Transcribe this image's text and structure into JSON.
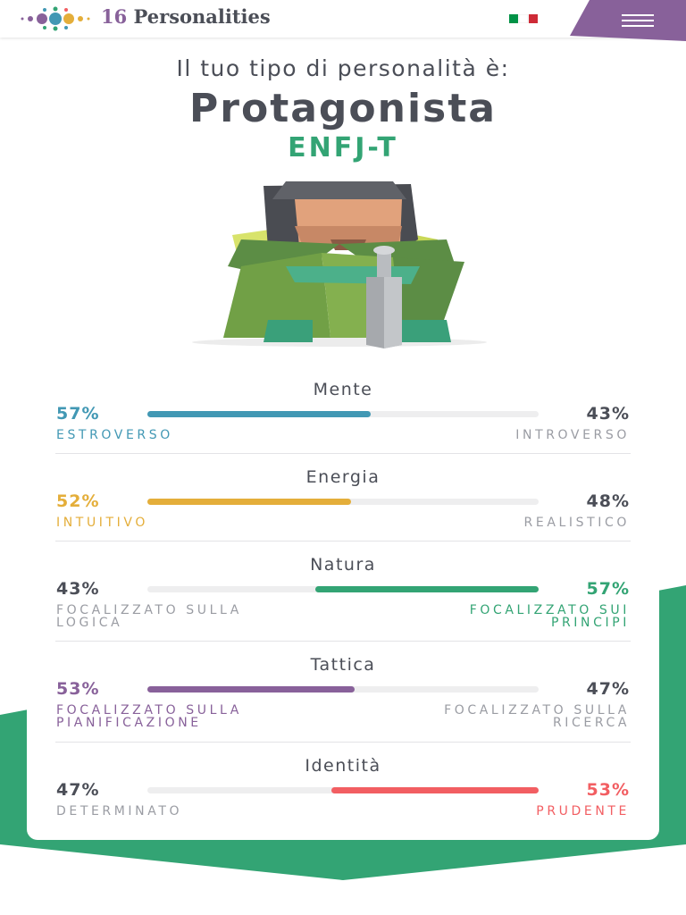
{
  "header": {
    "brand_number": "16",
    "brand_name": "Personalities"
  },
  "result": {
    "intro": "Il tuo tipo di personalità è:",
    "type_name": "Protagonista",
    "code": "ENFJ-T"
  },
  "traits": [
    {
      "title": "Mente",
      "values": [
        57,
        43
      ],
      "value_labels": [
        "57%",
        "43%"
      ],
      "labels": [
        "ESTROVERSO",
        "INTROVERSO"
      ],
      "dominant": "left",
      "color": "#4298b4"
    },
    {
      "title": "Energia",
      "values": [
        52,
        48
      ],
      "value_labels": [
        "52%",
        "48%"
      ],
      "labels": [
        "INTUITIVO",
        "REALISTICO"
      ],
      "dominant": "left",
      "color": "#e4ae3a"
    },
    {
      "title": "Natura",
      "values": [
        43,
        57
      ],
      "value_labels": [
        "43%",
        "57%"
      ],
      "labels": [
        "FOCALIZZATO SULLA LOGICA",
        "FOCALIZZATO SUI PRINCIPI"
      ],
      "dominant": "right",
      "color": "#33a474"
    },
    {
      "title": "Tattica",
      "values": [
        53,
        47
      ],
      "value_labels": [
        "53%",
        "47%"
      ],
      "labels": [
        "FOCALIZZATO SULLA PIANIFICAZIONE",
        "FOCALIZZATO SULLA RICERCA"
      ],
      "dominant": "left",
      "color": "#88619a"
    },
    {
      "title": "Identità",
      "values": [
        47,
        53
      ],
      "value_labels": [
        "47%",
        "53%"
      ],
      "labels": [
        "DETERMINATO",
        "PRUDENTE"
      ],
      "dominant": "right",
      "color": "#f25e62"
    }
  ]
}
